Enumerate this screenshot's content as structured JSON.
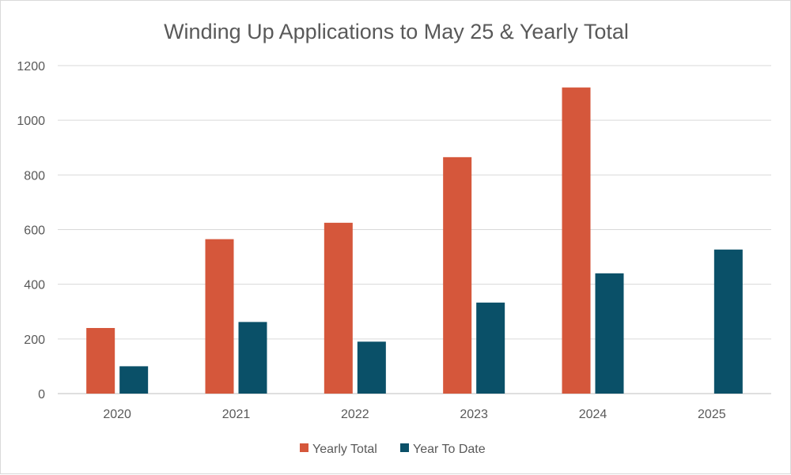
{
  "chart_data": {
    "type": "bar",
    "title": "Winding Up Applications to May 25 & Yearly Total",
    "categories": [
      "2020",
      "2021",
      "2022",
      "2023",
      "2024",
      "2025"
    ],
    "series": [
      {
        "name": "Yearly Total",
        "color": "#D5573B",
        "values": [
          240,
          565,
          625,
          865,
          1120,
          null
        ]
      },
      {
        "name": "Year To Date",
        "color": "#0A5068",
        "values": [
          100,
          262,
          190,
          333,
          440,
          527
        ]
      }
    ],
    "ylim": [
      0,
      1200
    ],
    "yticks": [
      "0",
      "200",
      "400",
      "600",
      "800",
      "1000",
      "1200"
    ],
    "grid": true,
    "legend": "bottom"
  }
}
